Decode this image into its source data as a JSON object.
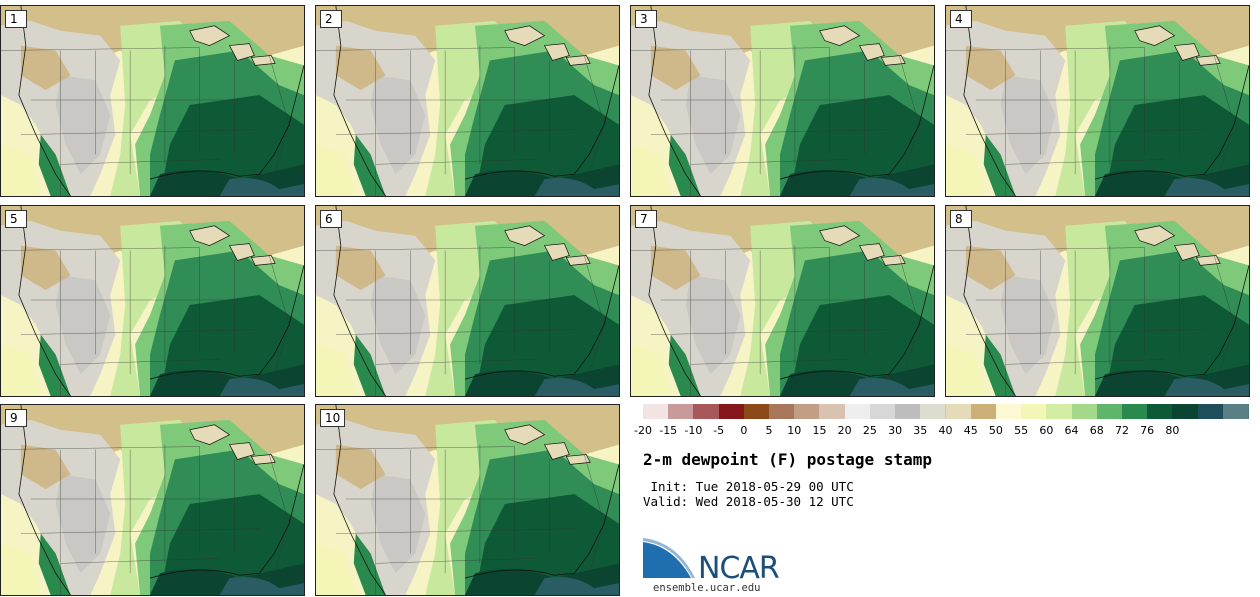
{
  "stamps": [
    {
      "label": "1"
    },
    {
      "label": "2"
    },
    {
      "label": "3"
    },
    {
      "label": "4"
    },
    {
      "label": "5"
    },
    {
      "label": "6"
    },
    {
      "label": "7"
    },
    {
      "label": "8"
    },
    {
      "label": "9"
    },
    {
      "label": "10"
    }
  ],
  "colorbar": {
    "colors": [
      "#f2e4e2",
      "#c99a9a",
      "#a85858",
      "#86171b",
      "#8c4a1a",
      "#a8765a",
      "#c29e86",
      "#d9c2b0",
      "#eeeeee",
      "#d7d7d7",
      "#bdbdbd",
      "#dcdccf",
      "#e6dbb8",
      "#cbb07a",
      "#fbf8d2",
      "#f4f6b8",
      "#d4eda4",
      "#a4d88a",
      "#5fb66a",
      "#2a8a4e",
      "#0f5a36",
      "#0b4431",
      "#1f4e5a",
      "#5a8086"
    ],
    "ticks": [
      "-20",
      "-15",
      "-10",
      "-5",
      "0",
      "5",
      "10",
      "15",
      "20",
      "25",
      "30",
      "35",
      "40",
      "45",
      "50",
      "55",
      "60",
      "64",
      "68",
      "72",
      "76",
      "80"
    ]
  },
  "title": "2-m dewpoint (F) postage stamp",
  "init_line": " Init: Tue 2018-05-29 00 UTC",
  "valid_line": "Valid: Wed 2018-05-30 12 UTC",
  "logo_text": "NCAR",
  "site": "ensemble.ucar.edu"
}
